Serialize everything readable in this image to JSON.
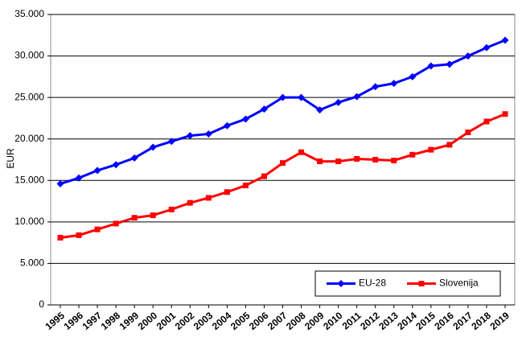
{
  "chart_data": {
    "type": "line",
    "y_label": "EUR",
    "categories": [
      "1995",
      "1996",
      "1997",
      "1998",
      "1999",
      "2000",
      "2001",
      "2002",
      "2003",
      "2004",
      "2005",
      "2006",
      "2007",
      "2008",
      "2009",
      "2010",
      "2011",
      "2012",
      "2013",
      "2014",
      "2015",
      "2016",
      "2017",
      "2018",
      "2019"
    ],
    "series": [
      {
        "name": "EU-28",
        "color": "#0000ff",
        "marker": "diamond",
        "values": [
          14600,
          15300,
          16200,
          16900,
          17700,
          19000,
          19700,
          20400,
          20600,
          21600,
          22400,
          23600,
          25000,
          25000,
          23500,
          24400,
          25100,
          26300,
          26700,
          27500,
          28800,
          29000,
          30000,
          31000,
          31900
        ]
      },
      {
        "name": "Slovenija",
        "color": "#ff0000",
        "marker": "square",
        "values": [
          8100,
          8400,
          9100,
          9800,
          10500,
          10800,
          11500,
          12300,
          12900,
          13600,
          14400,
          15500,
          17100,
          18400,
          17300,
          17300,
          17600,
          17500,
          17400,
          18100,
          18700,
          19300,
          20800,
          22100,
          23000
        ]
      }
    ],
    "ylim": [
      0,
      35000
    ],
    "yticks": [
      0,
      {
        "value": 5000,
        "label": "5.000"
      },
      {
        "value": 10000,
        "label": "10.000"
      },
      {
        "value": 15000,
        "label": "15.000"
      },
      {
        "value": 20000,
        "label": "20.000"
      },
      {
        "value": 25000,
        "label": "25.000"
      },
      {
        "value": 30000,
        "label": "30.000"
      },
      {
        "value": 35000,
        "label": "35.000"
      }
    ],
    "grid": true,
    "legend": "lower right"
  }
}
